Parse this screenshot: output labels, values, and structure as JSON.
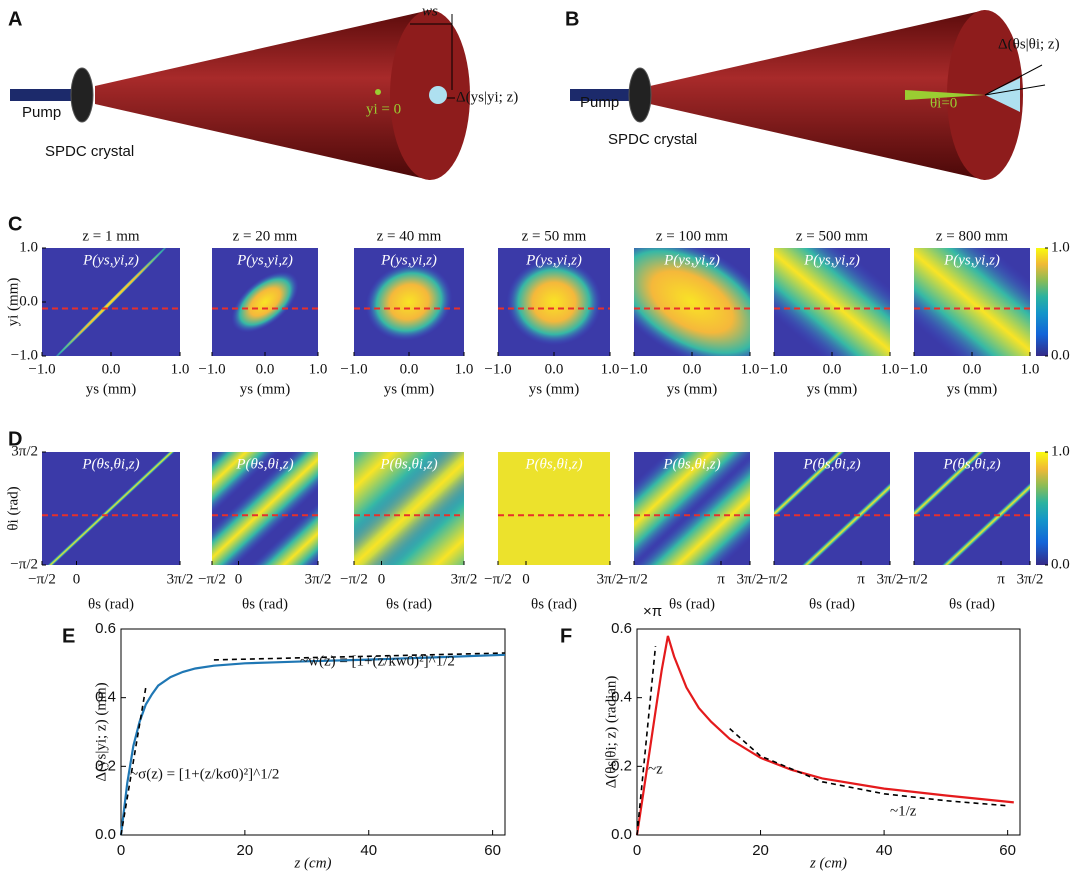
{
  "panels": {
    "A": {
      "label": "A",
      "pump": "Pump",
      "crystal": "SPDC crystal",
      "width_label": "ws",
      "center_label": "yi = 0",
      "delta_label": "Δ(ys|yi; z)"
    },
    "B": {
      "label": "B",
      "pump": "Pump",
      "crystal": "SPDC crystal",
      "center_label": "θi=0",
      "delta_label": "Δ(θs|θi; z)"
    },
    "C": {
      "label": "C",
      "x_label": "ys (mm)",
      "y_label": "yi (mm)",
      "xlim": [
        -1,
        1
      ],
      "ylim": [
        -1,
        1
      ],
      "xticks": [
        {
          "value": -1,
          "label": "−1.0"
        },
        {
          "value": 0,
          "label": "0.0"
        },
        {
          "value": 1,
          "label": "1.0"
        }
      ],
      "yticks": [
        {
          "value": -1,
          "label": "−1.0"
        },
        {
          "value": 0,
          "label": "0.0"
        },
        {
          "value": 1,
          "label": "1.0"
        }
      ],
      "colorbar": {
        "lim": [
          0,
          1
        ],
        "ticks": [
          {
            "value": 0,
            "label": "0.0"
          },
          {
            "value": 1,
            "label": "1.0"
          }
        ]
      },
      "plots": [
        {
          "title": "z = 1 mm",
          "map_label": "P(ys,yi,z)"
        },
        {
          "title": "z = 20 mm",
          "map_label": "P(ys,yi,z)"
        },
        {
          "title": "z = 40 mm",
          "map_label": "P(ys,yi,z)"
        },
        {
          "title": "z = 50 mm",
          "map_label": "P(ys,yi,z)"
        },
        {
          "title": "z = 100 mm",
          "map_label": "P(ys,yi,z)"
        },
        {
          "title": "z = 500 mm",
          "map_label": "P(ys,yi,z)"
        },
        {
          "title": "z = 800 mm",
          "map_label": "P(ys,yi,z)"
        }
      ]
    },
    "D": {
      "label": "D",
      "x_label": "θs (rad)",
      "y_label": "θi (rad)",
      "xlim": [
        -1.5708,
        4.7124
      ],
      "ylim": [
        -1.5708,
        4.7124
      ],
      "yticks": [
        {
          "value": -1.5708,
          "label": "−π/2"
        },
        {
          "value": 4.7124,
          "label": "3π/2"
        }
      ],
      "colorbar": {
        "lim": [
          0,
          1
        ],
        "ticks": [
          {
            "value": 0,
            "label": "0.0"
          },
          {
            "value": 1,
            "label": "1.0"
          }
        ]
      },
      "plots": [
        {
          "map_label": "P(θs,θi,z)",
          "xticks": [
            {
              "value": -1.5708,
              "label": "−π/2"
            },
            0,
            {
              "value": 4.7124,
              "label": "3π/2"
            }
          ]
        },
        {
          "map_label": "P(θs,θi,z)",
          "xticks": [
            {
              "value": -1.5708,
              "label": "−π/2"
            },
            0,
            {
              "value": 4.7124,
              "label": "3π/2"
            }
          ]
        },
        {
          "map_label": "P(θs,θi,z)",
          "xticks": [
            {
              "value": -1.5708,
              "label": "−π/2"
            },
            0,
            {
              "value": 4.7124,
              "label": "3π/2"
            }
          ]
        },
        {
          "map_label": "P(θs,θi,z)",
          "xticks": [
            {
              "value": -1.5708,
              "label": "−π/2"
            },
            0,
            {
              "value": 4.7124,
              "label": "3π/2"
            }
          ]
        },
        {
          "map_label": "P(θs,θi,z)",
          "xticks": [
            {
              "value": -1.5708,
              "label": "−π/2"
            },
            {
              "value": 3.1416,
              "label": "π"
            },
            {
              "value": 4.7124,
              "label": "3π/2"
            }
          ]
        },
        {
          "map_label": "P(θs,θi,z)",
          "xticks": [
            {
              "value": -1.5708,
              "label": "−π/2"
            },
            {
              "value": 3.1416,
              "label": "π"
            },
            {
              "value": 4.7124,
              "label": "3π/2"
            }
          ]
        },
        {
          "map_label": "P(θs,θi,z)",
          "xticks": [
            {
              "value": -1.5708,
              "label": "−π/2"
            },
            {
              "value": 3.1416,
              "label": "π"
            },
            {
              "value": 4.7124,
              "label": "3π/2"
            }
          ]
        }
      ]
    },
    "E": {
      "label": "E",
      "type": "line",
      "x_label": "z (cm)",
      "y_label": "Δ(ys|yi; z) (mm)",
      "xlim": [
        0,
        62
      ],
      "ylim": [
        0,
        0.6
      ],
      "xticks": [
        0,
        20,
        40,
        60
      ],
      "yticks": [
        {
          "value": 0,
          "label": "0.0"
        },
        0.2,
        0.4,
        0.6
      ],
      "series": [
        {
          "color": "#1f77b4",
          "dash": false,
          "x": [
            0,
            1,
            2,
            3,
            4,
            5,
            6,
            8,
            10,
            12,
            15,
            20,
            25,
            30,
            40,
            50,
            62
          ],
          "y": [
            0,
            0.15,
            0.26,
            0.33,
            0.38,
            0.41,
            0.435,
            0.46,
            0.475,
            0.485,
            0.493,
            0.5,
            0.503,
            0.506,
            0.511,
            0.517,
            0.525
          ]
        },
        {
          "color": "#000000",
          "dash": true,
          "x": [
            0,
            4
          ],
          "y": [
            0,
            0.43
          ]
        },
        {
          "color": "#000000",
          "dash": true,
          "x": [
            15,
            62
          ],
          "y": [
            0.51,
            0.53
          ]
        }
      ],
      "annotations": [
        "~w(z) = [1+(z/kw0)²]^1/2",
        "~σ(z) = [1+(z/kσ0)²]^1/2"
      ]
    },
    "F": {
      "label": "F",
      "type": "line",
      "x_label": "z (cm)",
      "y_label": "Δ(θs|θi; z) (radian)",
      "y_unit": "×π",
      "xlim": [
        0,
        62
      ],
      "ylim": [
        0,
        0.6
      ],
      "xticks": [
        0,
        20,
        40,
        60
      ],
      "yticks": [
        {
          "value": 0,
          "label": "0.0"
        },
        0.2,
        0.4,
        0.6
      ],
      "series": [
        {
          "color": "#e41a1c",
          "dash": false,
          "x": [
            0,
            1,
            2,
            3,
            4,
            5,
            6,
            8,
            10,
            12,
            15,
            20,
            25,
            30,
            40,
            50,
            61
          ],
          "y": [
            0,
            0.12,
            0.24,
            0.36,
            0.48,
            0.58,
            0.52,
            0.43,
            0.37,
            0.33,
            0.28,
            0.225,
            0.19,
            0.165,
            0.135,
            0.115,
            0.095
          ]
        },
        {
          "color": "#000000",
          "dash": true,
          "x": [
            0,
            3
          ],
          "y": [
            0,
            0.55
          ]
        },
        {
          "color": "#000000",
          "dash": true,
          "x": [
            15,
            20,
            30,
            40,
            50,
            60
          ],
          "y": [
            0.31,
            0.23,
            0.155,
            0.12,
            0.1,
            0.085
          ]
        }
      ],
      "annotations": [
        "~z",
        "~1/z"
      ]
    }
  }
}
